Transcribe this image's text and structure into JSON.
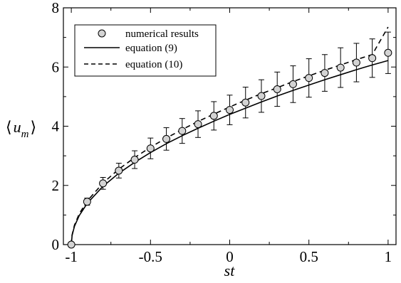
{
  "chart_data": {
    "type": "scatter",
    "title": "",
    "xlabel": "st",
    "ylabel_parts": {
      "open": "⟨",
      "var": "u",
      "sub": "m",
      "close": "⟩"
    },
    "xlim": [
      -1.05,
      1.05
    ],
    "ylim": [
      0,
      8
    ],
    "xticks": [
      -1,
      -0.5,
      0,
      0.5,
      1
    ],
    "xtick_labels": [
      "-1",
      "-0.5",
      "0",
      "0.5",
      "1"
    ],
    "yticks": [
      0,
      2,
      4,
      6,
      8
    ],
    "ytick_labels": [
      "0",
      "2",
      "4",
      "6",
      "8"
    ],
    "grid": false,
    "legend_placement": "top-left",
    "series": [
      {
        "name": "numerical results",
        "kind": "points-with-errorbars",
        "marker_fill": "#d3d3d3",
        "x": [
          -1.0,
          -0.9,
          -0.8,
          -0.7,
          -0.6,
          -0.5,
          -0.4,
          -0.3,
          -0.2,
          -0.1,
          0.0,
          0.1,
          0.2,
          0.3,
          0.4,
          0.5,
          0.6,
          0.7,
          0.8,
          0.9,
          1.0
        ],
        "y": [
          0.0,
          1.45,
          2.07,
          2.5,
          2.87,
          3.25,
          3.57,
          3.84,
          4.07,
          4.35,
          4.55,
          4.8,
          5.02,
          5.25,
          5.42,
          5.63,
          5.8,
          5.98,
          6.15,
          6.3,
          6.48
        ],
        "err": [
          0.0,
          0.12,
          0.2,
          0.25,
          0.3,
          0.35,
          0.38,
          0.42,
          0.45,
          0.48,
          0.5,
          0.52,
          0.55,
          0.58,
          0.62,
          0.65,
          0.62,
          0.67,
          0.65,
          0.65,
          0.7
        ]
      },
      {
        "name": "equation (9)",
        "kind": "line",
        "dash": "solid",
        "x": [
          -1.0,
          -0.995,
          -0.98,
          -0.95,
          -0.9,
          -0.8,
          -0.7,
          -0.6,
          -0.5,
          -0.4,
          -0.3,
          -0.2,
          -0.1,
          0.0,
          0.1,
          0.2,
          0.3,
          0.4,
          0.5,
          0.6,
          0.7,
          0.8,
          0.9,
          1.0
        ],
        "y": [
          0.0,
          0.31,
          0.62,
          0.98,
          1.39,
          1.97,
          2.41,
          2.78,
          3.11,
          3.41,
          3.68,
          3.93,
          4.17,
          4.4,
          4.61,
          4.82,
          5.02,
          5.21,
          5.39,
          5.57,
          5.74,
          5.91,
          6.07,
          6.22
        ]
      },
      {
        "name": "equation (10)",
        "kind": "line",
        "dash": "dashed",
        "x": [
          -1.0,
          -0.995,
          -0.98,
          -0.95,
          -0.9,
          -0.8,
          -0.7,
          -0.6,
          -0.5,
          -0.4,
          -0.3,
          -0.2,
          -0.1,
          0.0,
          0.1,
          0.2,
          0.3,
          0.4,
          0.5,
          0.6,
          0.7,
          0.8,
          0.9,
          1.0
        ],
        "y": [
          0.0,
          0.33,
          0.66,
          1.04,
          1.47,
          2.08,
          2.55,
          2.94,
          3.29,
          3.6,
          3.89,
          4.16,
          4.41,
          4.65,
          4.88,
          5.1,
          5.3,
          5.51,
          5.7,
          5.89,
          6.07,
          6.25,
          6.42,
          7.35
        ]
      }
    ]
  }
}
